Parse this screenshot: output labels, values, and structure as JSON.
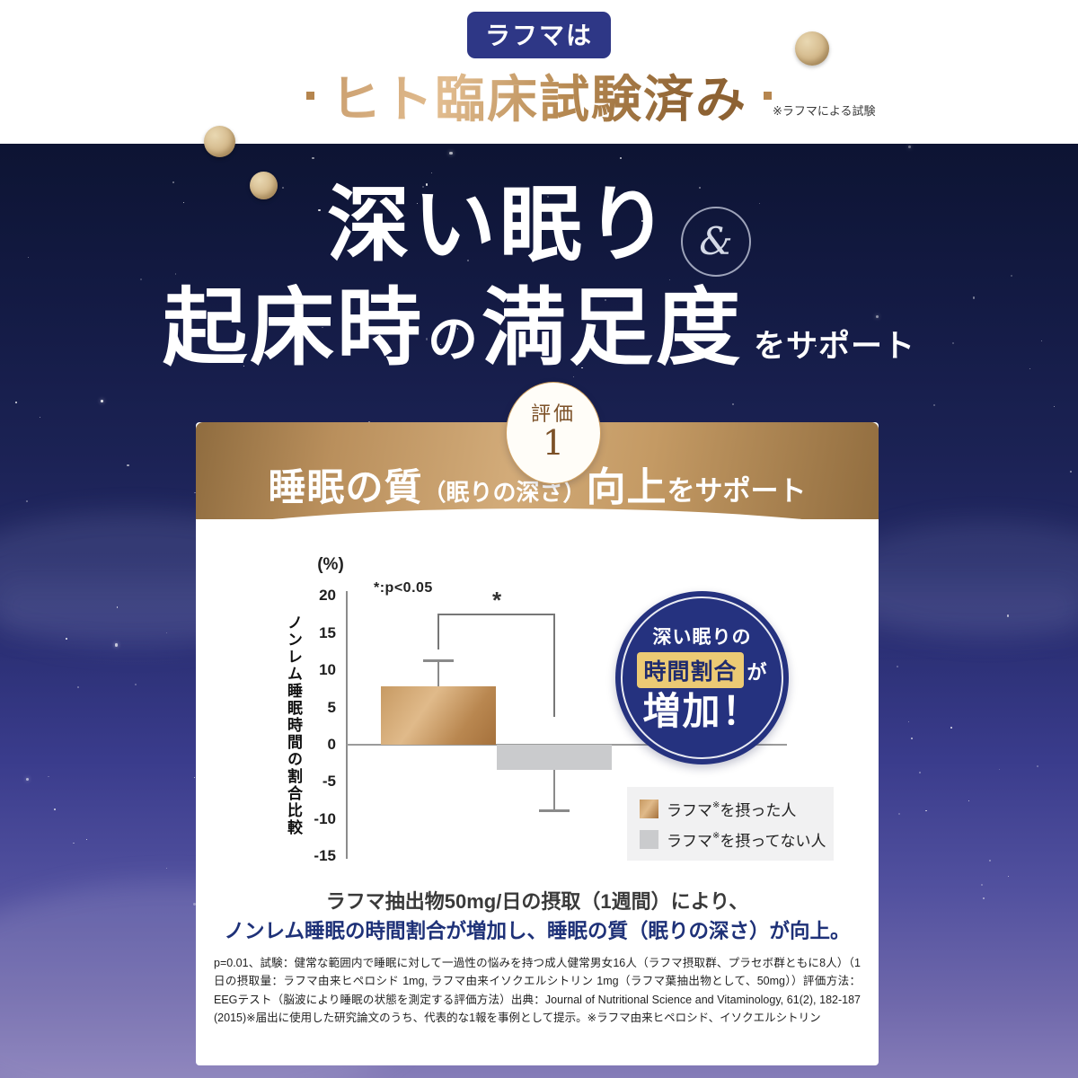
{
  "header": {
    "badge": "ラフマは",
    "title": "ヒト臨床試験済み",
    "note": "※ラフマによる試験"
  },
  "hero": {
    "line1": "深い眠り",
    "amp": "&",
    "line2_part1": "起床時",
    "line2_no": "の",
    "line2_part2": "満足度",
    "line2_suffix": "をサポート"
  },
  "section": {
    "eval_label": "評価",
    "eval_number": "1",
    "banner_part1": "睡眠の質",
    "banner_part2": "（眠りの深さ）",
    "banner_part3": "向上",
    "banner_part4": "をサポート"
  },
  "chart_data": {
    "type": "bar",
    "title": "ノンレム睡眠時間の割合比較",
    "unit_label": "(%)",
    "ylabel": "ノンレム睡眠時間の割合比較",
    "p_note": "*:p<0.05",
    "sig_marker": "*",
    "ylim": [
      -15,
      20
    ],
    "yticks": [
      20,
      15,
      10,
      5,
      0,
      -5,
      -10,
      -15
    ],
    "grid": false,
    "categories": [
      "ラフマを摂った人",
      "ラフマを摂ってない人"
    ],
    "series": [
      {
        "name": "ノンレム睡眠時間の割合比較(%)",
        "values": [
          7.8,
          -3.4
        ]
      }
    ],
    "error_bar_ends": [
      11.3,
      -8.9
    ],
    "bar_colors": [
      "#c79a63",
      "#cacbcd"
    ],
    "legend_position": "lower right"
  },
  "callout": {
    "line1": "深い眠りの",
    "tag": "時間割合",
    "suffix": "が",
    "main": "増加！"
  },
  "legend": [
    {
      "pre": "ラフマ",
      "sup": "※",
      "post": "を摂った人",
      "color": "#c79a63"
    },
    {
      "pre": "ラフマ",
      "sup": "※",
      "post": "を摂ってない人",
      "color": "#cacbcd"
    }
  ],
  "summary": {
    "line1": "ラフマ抽出物50mg/日の摂取（1週間）により、",
    "line2": "ノンレム睡眠の時間割合が増加し、睡眠の質（眠りの深さ）が向上。"
  },
  "footnote": "p=0.01、試験：健常な範囲内で睡眠に対して一過性の悩みを持つ成人健常男女16人（ラフマ摂取群、プラセボ群ともに8人）（1日の摂取量：ラフマ由来ヒペロシド 1mg, ラフマ由来イソクエルシトリン 1mg（ラフマ葉抽出物として、50mg））評価方法：EEGテスト（脳波により睡眠の状態を測定する評価方法）出典：Journal of Nutritional Science and Vitaminology, 61(2), 182-187 (2015)※届出に使用した研究論文のうち、代表的な1報を事例として提示。※ラフマ由来ヒペロシド、イソクエルシトリン",
  "colors": {
    "navy": "#25327f",
    "badge_navy": "#2e3786",
    "gold": "#c49a63",
    "tag_gold": "#ecca74",
    "bar_gray": "#cacbcd"
  }
}
